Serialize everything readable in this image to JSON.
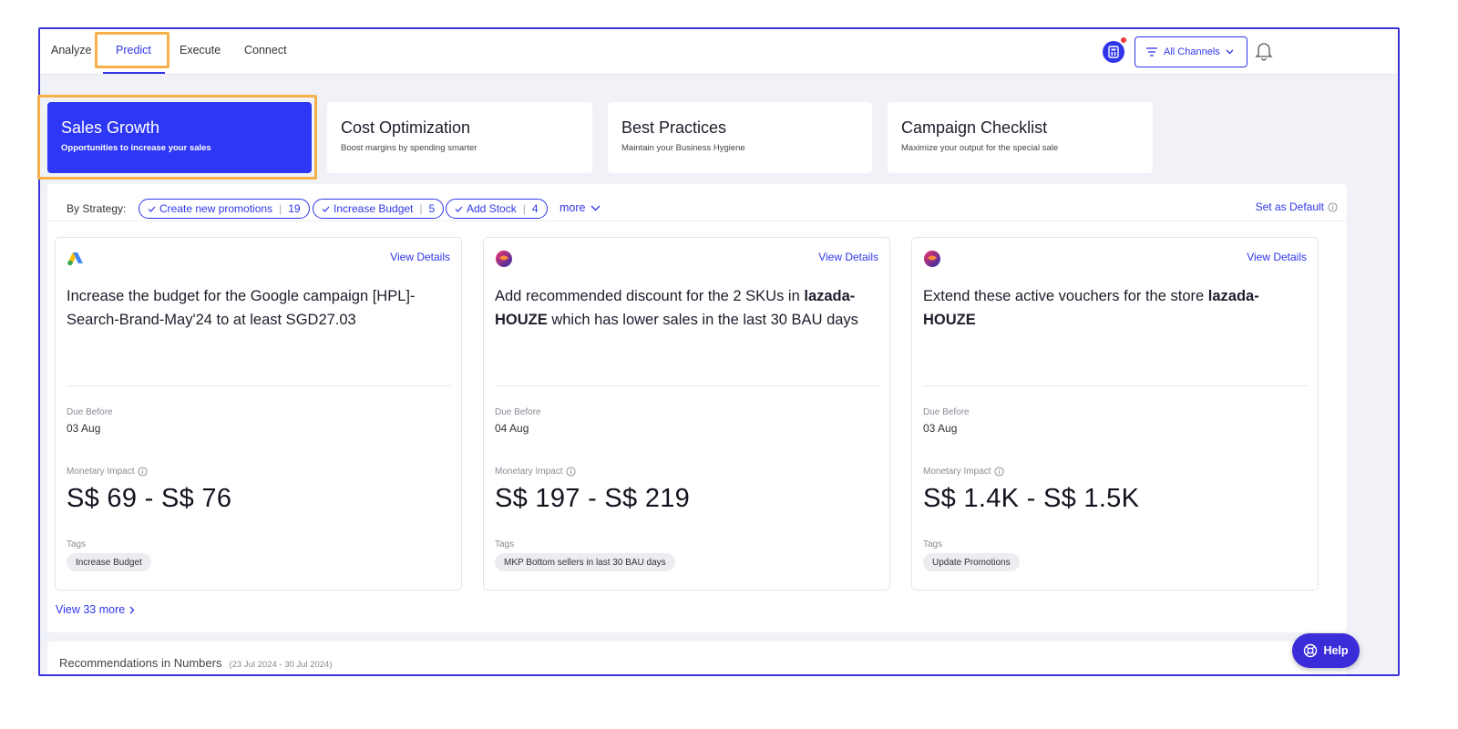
{
  "nav": {
    "tabs": [
      {
        "label": "Analyze"
      },
      {
        "label": "Predict"
      },
      {
        "label": "Execute"
      },
      {
        "label": "Connect"
      }
    ],
    "active_tab": "Predict",
    "channels_label": "All Channels"
  },
  "categories": [
    {
      "title": "Sales Growth",
      "subtitle": "Opportunities to increase your sales"
    },
    {
      "title": "Cost Optimization",
      "subtitle": "Boost margins by spending smarter"
    },
    {
      "title": "Best Practices",
      "subtitle": "Maintain your Business Hygiene"
    },
    {
      "title": "Campaign Checklist",
      "subtitle": "Maximize your output for the special sale"
    }
  ],
  "strategy": {
    "label": "By Strategy:",
    "chips": [
      {
        "label": "Create new promotions",
        "count": "19"
      },
      {
        "label": "Increase Budget",
        "count": "5"
      },
      {
        "label": "Add Stock",
        "count": "4"
      }
    ],
    "more_label": "more",
    "set_default_label": "Set as Default"
  },
  "cards": [
    {
      "view_details": "View Details",
      "text_plain": "Increase the budget for the Google campaign [HPL]-Search-Brand-May'24 to at least SGD27.03",
      "text_bold": "",
      "text_after": "",
      "due_label": "Due Before",
      "due_value": "03 Aug",
      "impact_label": "Monetary Impact",
      "impact_value": "S$ 69 - S$ 76",
      "tags_label": "Tags",
      "tag": "Increase Budget",
      "logo": "google-ads-logo"
    },
    {
      "view_details": "View Details",
      "text_plain": "Add recommended discount for the 2 SKUs in ",
      "text_bold": "lazada-HOUZE",
      "text_after": " which has lower sales in the last 30 BAU days",
      "due_label": "Due Before",
      "due_value": "04 Aug",
      "impact_label": "Monetary Impact",
      "impact_value": "S$ 197 - S$ 219",
      "tags_label": "Tags",
      "tag": "MKP Bottom sellers in last 30 BAU days",
      "logo": "lazada-logo"
    },
    {
      "view_details": "View Details",
      "text_plain": "Extend these active vouchers for the store ",
      "text_bold": "lazada-HOUZE",
      "text_after": "",
      "due_label": "Due Before",
      "due_value": "03 Aug",
      "impact_label": "Monetary Impact",
      "impact_value": "S$ 1.4K - S$ 1.5K",
      "tags_label": "Tags",
      "tag": "Update Promotions",
      "logo": "lazada-logo"
    }
  ],
  "view_more_label": "View 33 more",
  "numbers": {
    "title": "Recommendations in Numbers",
    "range": "(23 Jul 2024 - 30 Jul 2024)"
  },
  "help_label": "Help",
  "colors": {
    "accent": "#2f36e8",
    "active_card": "#2d37f5",
    "highlight": "#f6b04a",
    "help": "#3b2cd9"
  }
}
